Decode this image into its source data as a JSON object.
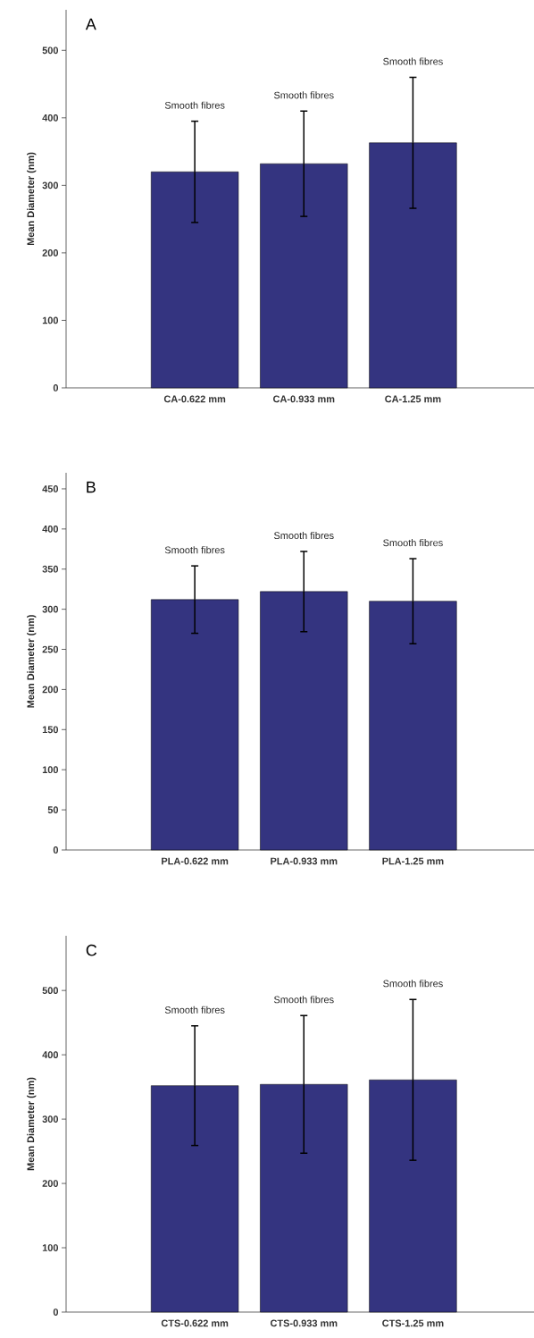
{
  "chart_data": [
    {
      "type": "bar",
      "title": "A",
      "ylabel": "Mean Diameter (nm)",
      "categories": [
        "CA-0.622 mm",
        "CA-0.933 mm",
        "CA-1.25 mm"
      ],
      "values": [
        320,
        332,
        363
      ],
      "errors": [
        75,
        78,
        97
      ],
      "color": "#343480",
      "ylim": [
        0,
        560
      ],
      "yticks": [
        0,
        100,
        200,
        300,
        400,
        500
      ],
      "annotations": [
        "Smooth fibres",
        "Smooth fibres",
        "Smooth fibres"
      ]
    },
    {
      "type": "bar",
      "title": "B",
      "ylabel": "Mean Diameter (nm)",
      "categories": [
        "PLA-0.622 mm",
        "PLA-0.933 mm",
        "PLA-1.25 mm"
      ],
      "values": [
        312,
        322,
        310
      ],
      "errors": [
        42,
        50,
        53
      ],
      "color": "#343480",
      "ylim": [
        0,
        470
      ],
      "yticks": [
        0,
        50,
        100,
        150,
        200,
        250,
        300,
        350,
        400,
        450
      ],
      "annotations": [
        "Smooth fibres",
        "Smooth fibres",
        "Smooth fibres"
      ]
    },
    {
      "type": "bar",
      "title": "C",
      "ylabel": "Mean Diameter (nm)",
      "categories": [
        "CTS-0.622 mm",
        "CTS-0.933 mm",
        "CTS-1.25 mm"
      ],
      "values": [
        352,
        354,
        361
      ],
      "errors": [
        93,
        107,
        125
      ],
      "color": "#343480",
      "ylim": [
        0,
        585
      ],
      "yticks": [
        0,
        100,
        200,
        300,
        400,
        500
      ],
      "annotations": [
        "Smooth fibres",
        "Smooth fibres",
        "Smooth fibres"
      ]
    }
  ]
}
